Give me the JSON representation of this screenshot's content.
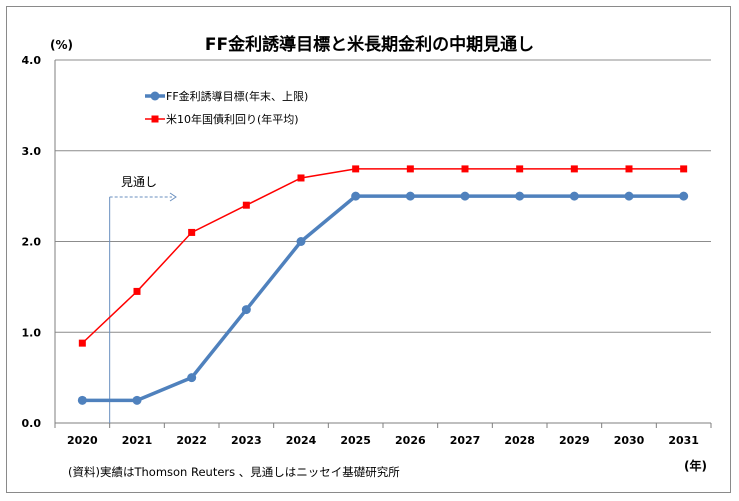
{
  "chart_data": {
    "type": "line",
    "title": "FF金利誘導目標と米長期金利の中期見通し",
    "ylabel": "(%)",
    "xlabel": "(年)",
    "ylim": [
      0,
      4
    ],
    "yticks": [
      "0.0",
      "1.0",
      "2.0",
      "3.0",
      "4.0"
    ],
    "categories": [
      "2020",
      "2021",
      "2022",
      "2023",
      "2024",
      "2025",
      "2026",
      "2027",
      "2028",
      "2029",
      "2030",
      "2031"
    ],
    "grid": true,
    "legend_position": "top-left",
    "series": [
      {
        "name": "FF金利誘導目標(年末、上限)",
        "color": "#4f81bd",
        "marker": "circle",
        "values": [
          0.25,
          0.25,
          0.5,
          1.25,
          2.0,
          2.5,
          2.5,
          2.5,
          2.5,
          2.5,
          2.5,
          2.5
        ]
      },
      {
        "name": "米10年国債利回り(年平均)",
        "color": "#ff0000",
        "marker": "square",
        "values": [
          0.88,
          1.45,
          2.1,
          2.4,
          2.7,
          2.8,
          2.8,
          2.8,
          2.8,
          2.8,
          2.8,
          2.8
        ]
      }
    ],
    "annotation": "見通し",
    "note": "(資料)実績はThomson Reuters 、見通しはニッセイ基礎研究所"
  }
}
